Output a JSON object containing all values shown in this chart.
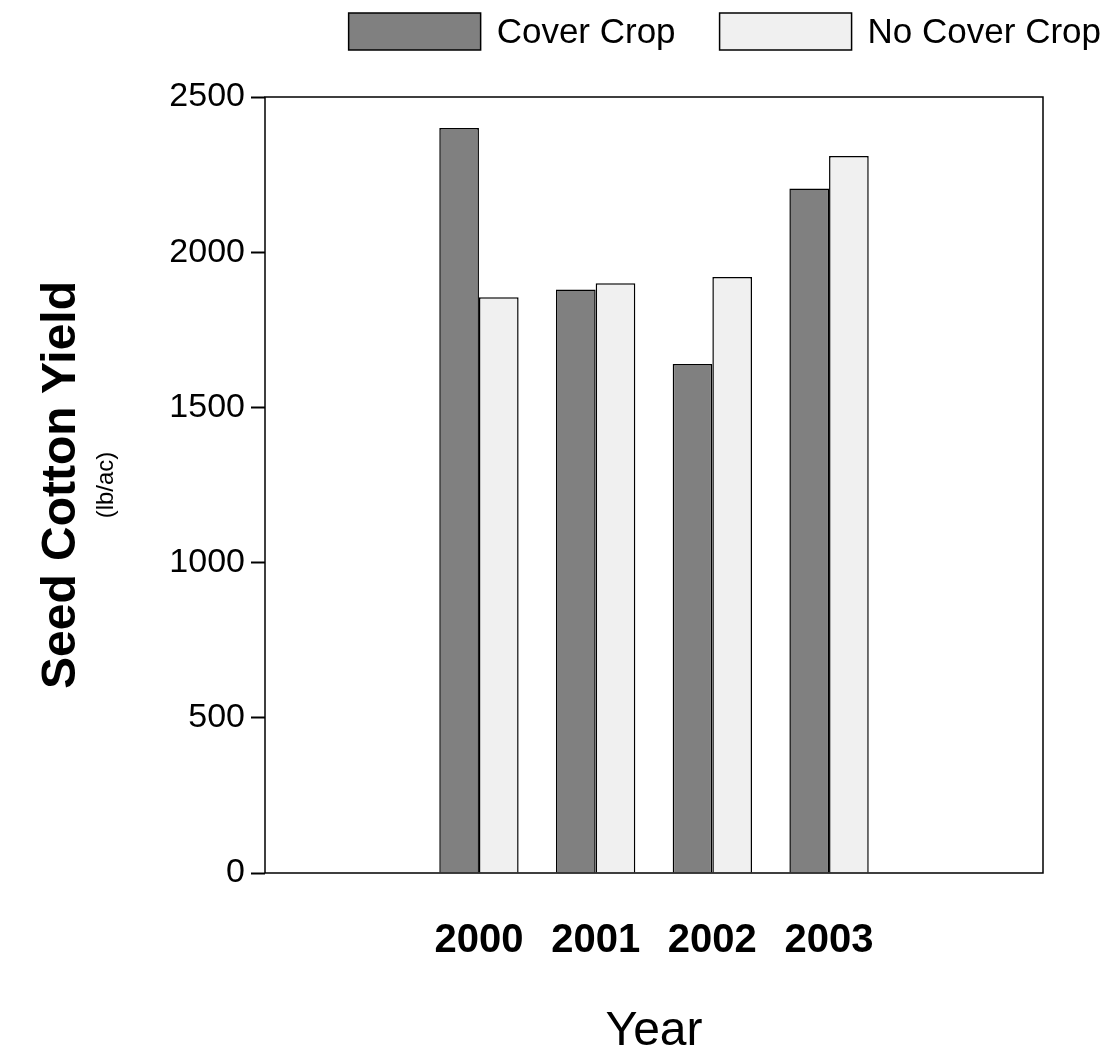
{
  "chart_data": {
    "type": "bar",
    "xlabel": "Year",
    "ylabel": "Seed Cotton Yield\n(lb/ac)",
    "categories": [
      "2000",
      "2001",
      "2002",
      "2003"
    ],
    "series": [
      {
        "name": "Cover Crop",
        "color": "#808080",
        "values": [
          2400,
          1880,
          1640,
          2205
        ]
      },
      {
        "name": "No Cover Crop",
        "color": "#f0f0f0",
        "values": [
          1855,
          1900,
          1920,
          2310
        ]
      }
    ],
    "ylim": [
      0,
      2500
    ],
    "yticks": [
      0,
      500,
      1000,
      1500,
      2000,
      2500
    ],
    "legend": "top right"
  }
}
